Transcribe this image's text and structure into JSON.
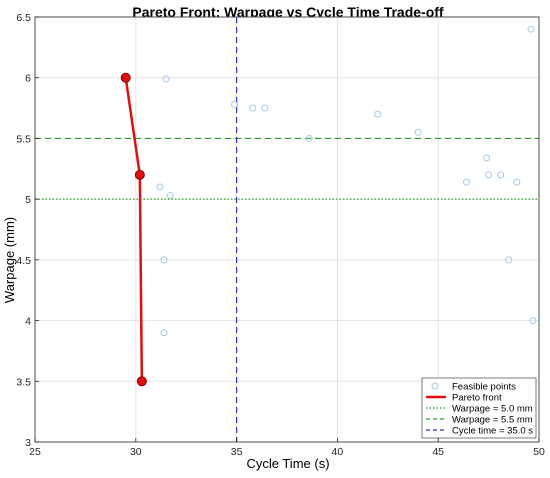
{
  "chart_data": {
    "type": "scatter",
    "title": "Pareto Front: Warpage vs Cycle Time Trade-off",
    "xlabel": "Cycle Time (s)",
    "ylabel": "Warpage (mm)",
    "xlim": [
      25,
      50
    ],
    "ylim": [
      3,
      6.5
    ],
    "xticks": [
      25,
      30,
      35,
      40,
      45,
      50
    ],
    "yticks": [
      3,
      3.5,
      4,
      4.5,
      5,
      5.5,
      6,
      6.5
    ],
    "grid": true,
    "legend_position": "bottom-right",
    "feasible_points": {
      "name": "Feasible points",
      "color": "#a8c8e8",
      "x": [
        31.5,
        34.9,
        35.8,
        36.4,
        38.6,
        42.0,
        44.0,
        47.4,
        47.5,
        48.1,
        48.9,
        46.4,
        49.6,
        31.2,
        31.7,
        31.4,
        48.5,
        31.4,
        49.7
      ],
      "y": [
        5.99,
        5.78,
        5.75,
        5.75,
        5.5,
        5.7,
        5.55,
        5.34,
        5.2,
        5.2,
        5.14,
        5.14,
        6.4,
        5.1,
        5.03,
        4.5,
        4.5,
        3.9,
        4.0
      ]
    },
    "pareto_front": {
      "name": "Pareto front",
      "color": "#e01010",
      "x": [
        29.5,
        30.2,
        30.3
      ],
      "y": [
        6.0,
        5.2,
        3.5
      ]
    },
    "reference_lines": [
      {
        "name": "Warpage = 5.0 mm",
        "orientation": "horizontal",
        "value": 5.0,
        "style": "dotted",
        "color": "#2ca02c"
      },
      {
        "name": "Warpage = 5.5 mm",
        "orientation": "horizontal",
        "value": 5.5,
        "style": "dashed",
        "color": "#2ca02c"
      },
      {
        "name": "Cycle time = 35.0 s",
        "orientation": "vertical",
        "value": 35.0,
        "style": "dashed",
        "color": "#3333bb"
      }
    ]
  }
}
